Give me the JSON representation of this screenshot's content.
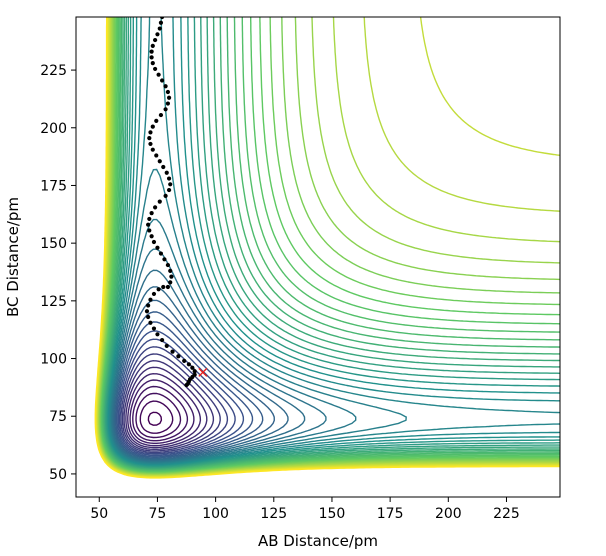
{
  "chart_data": {
    "type": "contour",
    "title": "",
    "xlabel": "AB Distance/pm",
    "ylabel": "BC Distance/pm",
    "xlim": [
      40,
      248
    ],
    "ylim": [
      40,
      248
    ],
    "x_ticks": [
      50,
      75,
      100,
      125,
      150,
      175,
      200,
      225
    ],
    "y_ticks": [
      50,
      75,
      100,
      125,
      150,
      175,
      200,
      225
    ],
    "x_tick_labels": [
      "50",
      "75",
      "100",
      "125",
      "150",
      "175",
      "200",
      "225"
    ],
    "y_tick_labels": [
      "50",
      "75",
      "100",
      "125",
      "150",
      "175",
      "200",
      "225"
    ],
    "grid": false,
    "legend": "none",
    "colormap": "viridis",
    "colormap_stops": [
      "#440154",
      "#3b528b",
      "#21918c",
      "#5ec962",
      "#fde725"
    ],
    "contour_levels": 45,
    "series": [
      {
        "type": "scatter",
        "marker": "dot",
        "color": "#000000",
        "points": [
          [
            88,
            89
          ],
          [
            87.5,
            88.5
          ],
          [
            88.5,
            90
          ],
          [
            89,
            91
          ],
          [
            90,
            92
          ],
          [
            91,
            93
          ],
          [
            91,
            94.5
          ],
          [
            90,
            96
          ],
          [
            88.5,
            97.5
          ],
          [
            86.5,
            99
          ],
          [
            84,
            101
          ],
          [
            81.5,
            103
          ],
          [
            79,
            105.5
          ],
          [
            77,
            108
          ],
          [
            75,
            110.5
          ],
          [
            73.5,
            113
          ],
          [
            72,
            115.5
          ],
          [
            71,
            118
          ],
          [
            70.5,
            120.5
          ],
          [
            71,
            123
          ],
          [
            72,
            125.5
          ],
          [
            73.5,
            128
          ],
          [
            75.5,
            130
          ],
          [
            77.5,
            131
          ],
          [
            79.5,
            131
          ],
          [
            80.5,
            133
          ],
          [
            81,
            135.5
          ],
          [
            80.5,
            138
          ],
          [
            79.5,
            140.5
          ],
          [
            78,
            143
          ],
          [
            76.5,
            145.5
          ],
          [
            75,
            148
          ],
          [
            73.5,
            150.5
          ],
          [
            72.5,
            153
          ],
          [
            71.5,
            155.5
          ],
          [
            71,
            158
          ],
          [
            71.5,
            160.5
          ],
          [
            72.5,
            163
          ],
          [
            74,
            165.5
          ],
          [
            76,
            168
          ],
          [
            78.5,
            170.5
          ],
          [
            80,
            173
          ],
          [
            80.5,
            175.5
          ],
          [
            80,
            178
          ],
          [
            79,
            180.5
          ],
          [
            77.5,
            183
          ],
          [
            76,
            185.5
          ],
          [
            74.5,
            188
          ],
          [
            73,
            190.5
          ],
          [
            72,
            193
          ],
          [
            71.5,
            195.5
          ],
          [
            72,
            198
          ],
          [
            73,
            200.5
          ],
          [
            74.5,
            203
          ],
          [
            76.5,
            205.5
          ],
          [
            78.5,
            208
          ],
          [
            79.5,
            210.5
          ],
          [
            80,
            213
          ],
          [
            79.5,
            215.5
          ],
          [
            78.5,
            218
          ],
          [
            77,
            220.5
          ],
          [
            75.5,
            223
          ],
          [
            74,
            225.5
          ],
          [
            73,
            228
          ],
          [
            72.5,
            230.5
          ],
          [
            72.5,
            233
          ],
          [
            73,
            235.5
          ],
          [
            74,
            238
          ],
          [
            75,
            240.5
          ],
          [
            76,
            243
          ],
          [
            76.5,
            245.5
          ],
          [
            77,
            248
          ]
        ]
      },
      {
        "type": "marker",
        "marker": "x",
        "color": "#e8201e",
        "points": [
          [
            94.5,
            94
          ]
        ]
      }
    ]
  }
}
